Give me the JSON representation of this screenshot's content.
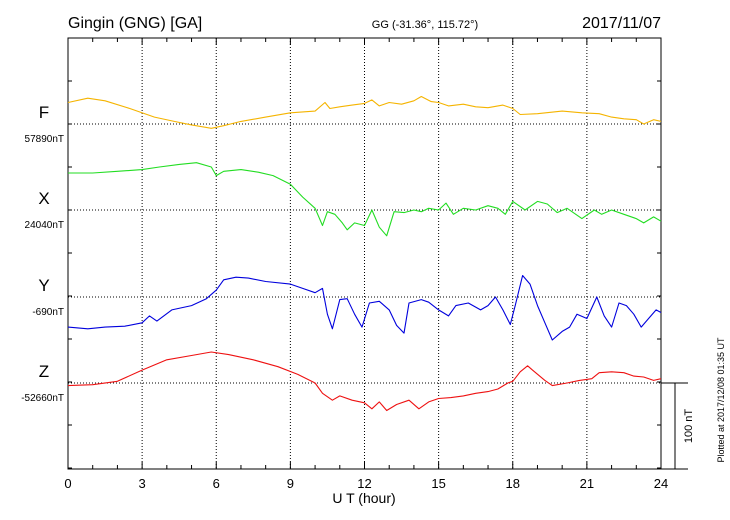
{
  "chart_data": {
    "type": "line",
    "title": "Gingin (GNG)  [GA]",
    "station_coords": "GG (-31.36°, 115.72°)",
    "date": "2017/11/07",
    "xlabel": "U T (hour)",
    "xlim": [
      0,
      24
    ],
    "xticks": [
      "0",
      "3",
      "6",
      "9",
      "12",
      "15",
      "18",
      "21",
      "24"
    ],
    "grid": true,
    "scale_bar_label": "100 nT",
    "plotted_note": "Plotted at 2017/12/08 01:35 UT",
    "series": [
      {
        "name": "F",
        "baseline_label": "57890nT",
        "color": "#f5b400",
        "baseline": 57890,
        "points": [
          [
            0,
            57915
          ],
          [
            0.8,
            57920
          ],
          [
            1.5,
            57917
          ],
          [
            2.5,
            57908
          ],
          [
            3.5,
            57898
          ],
          [
            4.3,
            57893
          ],
          [
            5,
            57889
          ],
          [
            5.8,
            57885
          ],
          [
            6.3,
            57888
          ],
          [
            7,
            57893
          ],
          [
            8,
            57898
          ],
          [
            9,
            57903
          ],
          [
            10,
            57905
          ],
          [
            10.4,
            57915
          ],
          [
            10.6,
            57908
          ],
          [
            11,
            57910
          ],
          [
            11.5,
            57912
          ],
          [
            12,
            57914
          ],
          [
            12.3,
            57918
          ],
          [
            12.6,
            57911
          ],
          [
            13,
            57915
          ],
          [
            13.5,
            57913
          ],
          [
            14,
            57917
          ],
          [
            14.3,
            57922
          ],
          [
            14.7,
            57916
          ],
          [
            15,
            57915
          ],
          [
            15.4,
            57911
          ],
          [
            16,
            57913
          ],
          [
            16.5,
            57910
          ],
          [
            17,
            57909
          ],
          [
            17.6,
            57912
          ],
          [
            18,
            57908
          ],
          [
            18.3,
            57901
          ],
          [
            19,
            57902
          ],
          [
            20,
            57905
          ],
          [
            20.8,
            57903
          ],
          [
            21.5,
            57902
          ],
          [
            22,
            57898
          ],
          [
            22.5,
            57896
          ],
          [
            23,
            57895
          ],
          [
            23.3,
            57890
          ],
          [
            23.7,
            57895
          ],
          [
            24,
            57893
          ]
        ]
      },
      {
        "name": "X",
        "baseline_label": "24040nT",
        "color": "#22dd22",
        "baseline": 24040,
        "points": [
          [
            0,
            24083
          ],
          [
            1,
            24083
          ],
          [
            2,
            24085
          ],
          [
            3,
            24087
          ],
          [
            3.7,
            24090
          ],
          [
            4.5,
            24093
          ],
          [
            5.2,
            24095
          ],
          [
            5.8,
            24090
          ],
          [
            6,
            24080
          ],
          [
            6.3,
            24085
          ],
          [
            7,
            24087
          ],
          [
            7.7,
            24084
          ],
          [
            8.3,
            24080
          ],
          [
            9,
            24070
          ],
          [
            9.5,
            24055
          ],
          [
            10,
            24042
          ],
          [
            10.3,
            24022
          ],
          [
            10.5,
            24038
          ],
          [
            10.8,
            24035
          ],
          [
            11.1,
            24025
          ],
          [
            11.3,
            24017
          ],
          [
            11.6,
            24025
          ],
          [
            12,
            24022
          ],
          [
            12.3,
            24040
          ],
          [
            12.6,
            24020
          ],
          [
            12.9,
            24010
          ],
          [
            13.2,
            24038
          ],
          [
            13.6,
            24037
          ],
          [
            14,
            24040
          ],
          [
            14.3,
            24038
          ],
          [
            14.6,
            24042
          ],
          [
            15,
            24040
          ],
          [
            15.3,
            24048
          ],
          [
            15.6,
            24035
          ],
          [
            16,
            24042
          ],
          [
            16.5,
            24040
          ],
          [
            17,
            24045
          ],
          [
            17.4,
            24042
          ],
          [
            17.7,
            24035
          ],
          [
            18,
            24050
          ],
          [
            18.5,
            24040
          ],
          [
            19,
            24050
          ],
          [
            19.4,
            24047
          ],
          [
            19.8,
            24037
          ],
          [
            20.2,
            24042
          ],
          [
            20.8,
            24030
          ],
          [
            21.3,
            24040
          ],
          [
            21.6,
            24035
          ],
          [
            22,
            24040
          ],
          [
            22.5,
            24035
          ],
          [
            23,
            24030
          ],
          [
            23.3,
            24025
          ],
          [
            23.7,
            24032
          ],
          [
            24,
            24027
          ]
        ]
      },
      {
        "name": "Y",
        "baseline_label": "-690nT",
        "color": "#0000dd",
        "baseline": -690,
        "points": [
          [
            0,
            -725
          ],
          [
            0.8,
            -727
          ],
          [
            1.5,
            -725
          ],
          [
            2.3,
            -724
          ],
          [
            3,
            -720
          ],
          [
            3.3,
            -712
          ],
          [
            3.6,
            -718
          ],
          [
            4.2,
            -705
          ],
          [
            5,
            -700
          ],
          [
            5.6,
            -692
          ],
          [
            6,
            -682
          ],
          [
            6.3,
            -670
          ],
          [
            6.8,
            -667
          ],
          [
            7.3,
            -668
          ],
          [
            8,
            -672
          ],
          [
            9,
            -675
          ],
          [
            9.5,
            -680
          ],
          [
            10,
            -685
          ],
          [
            10.3,
            -680
          ],
          [
            10.5,
            -710
          ],
          [
            10.7,
            -727
          ],
          [
            11,
            -693
          ],
          [
            11.3,
            -692
          ],
          [
            11.6,
            -710
          ],
          [
            11.9,
            -725
          ],
          [
            12.2,
            -697
          ],
          [
            12.6,
            -695
          ],
          [
            13,
            -705
          ],
          [
            13.3,
            -723
          ],
          [
            13.6,
            -732
          ],
          [
            13.8,
            -697
          ],
          [
            14.3,
            -693
          ],
          [
            14.6,
            -696
          ],
          [
            15,
            -705
          ],
          [
            15.4,
            -712
          ],
          [
            15.7,
            -700
          ],
          [
            16.2,
            -697
          ],
          [
            16.7,
            -705
          ],
          [
            17,
            -700
          ],
          [
            17.3,
            -690
          ],
          [
            17.6,
            -705
          ],
          [
            17.9,
            -722
          ],
          [
            18.1,
            -700
          ],
          [
            18.4,
            -665
          ],
          [
            18.7,
            -675
          ],
          [
            19,
            -700
          ],
          [
            19.3,
            -720
          ],
          [
            19.6,
            -740
          ],
          [
            20,
            -730
          ],
          [
            20.3,
            -725
          ],
          [
            20.6,
            -710
          ],
          [
            21,
            -715
          ],
          [
            21.4,
            -690
          ],
          [
            21.7,
            -712
          ],
          [
            22,
            -725
          ],
          [
            22.3,
            -697
          ],
          [
            22.6,
            -700
          ],
          [
            22.9,
            -710
          ],
          [
            23.2,
            -725
          ],
          [
            23.5,
            -715
          ],
          [
            23.8,
            -705
          ],
          [
            24,
            -708
          ]
        ]
      },
      {
        "name": "Z",
        "baseline_label": "-52660nT",
        "color": "#ee1111",
        "baseline": -52660,
        "points": [
          [
            0,
            -52663
          ],
          [
            1,
            -52662
          ],
          [
            2,
            -52658
          ],
          [
            3,
            -52645
          ],
          [
            4,
            -52633
          ],
          [
            5,
            -52628
          ],
          [
            5.8,
            -52624
          ],
          [
            6.5,
            -52627
          ],
          [
            7.5,
            -52633
          ],
          [
            8.5,
            -52641
          ],
          [
            9.3,
            -52650
          ],
          [
            10,
            -52660
          ],
          [
            10.3,
            -52672
          ],
          [
            10.7,
            -52680
          ],
          [
            11,
            -52675
          ],
          [
            11.5,
            -52680
          ],
          [
            12,
            -52683
          ],
          [
            12.3,
            -52690
          ],
          [
            12.6,
            -52682
          ],
          [
            12.9,
            -52692
          ],
          [
            13.3,
            -52685
          ],
          [
            13.8,
            -52680
          ],
          [
            14.2,
            -52690
          ],
          [
            14.6,
            -52682
          ],
          [
            15,
            -52678
          ],
          [
            15.5,
            -52677
          ],
          [
            16,
            -52675
          ],
          [
            16.5,
            -52672
          ],
          [
            17,
            -52670
          ],
          [
            17.4,
            -52667
          ],
          [
            17.8,
            -52660
          ],
          [
            18,
            -52658
          ],
          [
            18.3,
            -52647
          ],
          [
            18.6,
            -52640
          ],
          [
            18.8,
            -52645
          ],
          [
            19.3,
            -52657
          ],
          [
            19.6,
            -52663
          ],
          [
            20.2,
            -52660
          ],
          [
            20.7,
            -52657
          ],
          [
            21.2,
            -52655
          ],
          [
            21.5,
            -52648
          ],
          [
            22,
            -52647
          ],
          [
            22.5,
            -52648
          ],
          [
            22.9,
            -52652
          ],
          [
            23.3,
            -52653
          ],
          [
            23.7,
            -52657
          ],
          [
            24,
            -52655
          ]
        ]
      }
    ]
  }
}
